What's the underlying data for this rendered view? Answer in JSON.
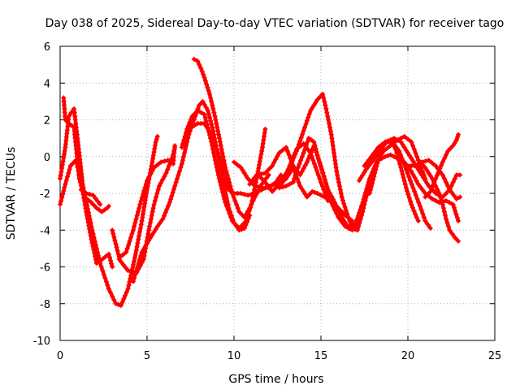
{
  "chart_data": {
    "type": "scatter",
    "title": "Day 038 of 2025, Sidereal Day-to-day VTEC variation (SDTVAR) for receiver tago",
    "xlabel": "GPS time / hours",
    "ylabel": "SDTVAR / TECUs",
    "xlim": [
      0,
      25
    ],
    "ylim": [
      -10,
      6
    ],
    "xticks": [
      0,
      5,
      10,
      15,
      20,
      25
    ],
    "yticks": [
      -10,
      -8,
      -6,
      -4,
      -2,
      0,
      2,
      4,
      6
    ],
    "grid": true,
    "marker": "+",
    "color": "#ff0000",
    "series": [
      {
        "name": "track-1",
        "points": [
          [
            0.0,
            -1.2
          ],
          [
            0.3,
            0.5
          ],
          [
            0.5,
            2.2
          ],
          [
            0.8,
            2.6
          ],
          [
            1.0,
            1.0
          ],
          [
            1.3,
            -1.5
          ],
          [
            1.8,
            -3.8
          ],
          [
            2.3,
            -5.8
          ],
          [
            2.8,
            -7.2
          ],
          [
            3.2,
            -8.0
          ],
          [
            3.5,
            -8.1
          ],
          [
            3.9,
            -7.2
          ],
          [
            4.3,
            -5.5
          ],
          [
            4.7,
            -3.5
          ],
          [
            5.0,
            -1.8
          ],
          [
            5.3,
            -0.3
          ],
          [
            5.5,
            0.8
          ],
          [
            5.6,
            1.1
          ]
        ]
      },
      {
        "name": "track-2",
        "points": [
          [
            0.0,
            -2.6
          ],
          [
            0.3,
            -1.5
          ],
          [
            0.6,
            -0.5
          ],
          [
            0.9,
            -0.2
          ],
          [
            1.2,
            -1.3
          ],
          [
            1.5,
            -3.0
          ],
          [
            1.8,
            -4.5
          ],
          [
            2.1,
            -5.8
          ],
          [
            2.4,
            -5.6
          ],
          [
            2.8,
            -5.3
          ],
          [
            3.0,
            -6.0
          ]
        ]
      },
      {
        "name": "track-3",
        "points": [
          [
            0.2,
            3.2
          ],
          [
            0.3,
            2.0
          ],
          [
            0.5,
            1.8
          ],
          [
            0.8,
            1.6
          ],
          [
            1.1,
            -1.2
          ],
          [
            1.4,
            -2.2
          ],
          [
            1.8,
            -2.5
          ],
          [
            2.1,
            -2.8
          ],
          [
            2.4,
            -3.0
          ],
          [
            2.7,
            -2.8
          ],
          [
            2.8,
            -2.7
          ]
        ]
      },
      {
        "name": "track-4",
        "points": [
          [
            1.2,
            -1.8
          ],
          [
            1.5,
            -2.0
          ],
          [
            1.9,
            -2.1
          ],
          [
            2.3,
            -2.6
          ]
        ]
      },
      {
        "name": "track-5",
        "points": [
          [
            3.0,
            -4.0
          ],
          [
            3.4,
            -5.5
          ],
          [
            3.8,
            -5.2
          ],
          [
            4.2,
            -4.0
          ],
          [
            4.6,
            -2.6
          ],
          [
            5.0,
            -1.3
          ],
          [
            5.4,
            -0.6
          ],
          [
            5.8,
            -0.3
          ],
          [
            6.2,
            -0.2
          ],
          [
            6.5,
            -0.4
          ],
          [
            6.6,
            0.6
          ]
        ]
      },
      {
        "name": "track-6",
        "points": [
          [
            3.4,
            -5.6
          ],
          [
            3.9,
            -6.2
          ],
          [
            4.4,
            -6.3
          ],
          [
            4.8,
            -5.6
          ],
          [
            5.1,
            -4.0
          ],
          [
            5.4,
            -2.6
          ],
          [
            5.7,
            -1.6
          ],
          [
            6.1,
            -0.9
          ],
          [
            6.5,
            0.1
          ],
          [
            6.6,
            0.5
          ]
        ]
      },
      {
        "name": "track-7",
        "points": [
          [
            4.2,
            -6.8
          ],
          [
            4.7,
            -5.2
          ],
          [
            5.2,
            -4.4
          ],
          [
            5.6,
            -3.8
          ],
          [
            5.9,
            -3.4
          ],
          [
            6.3,
            -2.5
          ],
          [
            6.6,
            -1.6
          ],
          [
            7.0,
            -0.4
          ],
          [
            7.4,
            1.2
          ],
          [
            7.7,
            2.0
          ],
          [
            8.0,
            2.8
          ],
          [
            8.2,
            3.0
          ],
          [
            8.5,
            2.5
          ],
          [
            8.8,
            1.4
          ],
          [
            9.1,
            0.0
          ],
          [
            9.4,
            -1.5
          ],
          [
            9.7,
            -2.8
          ],
          [
            10.0,
            -3.6
          ],
          [
            10.3,
            -4.0
          ],
          [
            10.6,
            -3.9
          ],
          [
            10.9,
            -3.2
          ]
        ]
      },
      {
        "name": "track-8",
        "points": [
          [
            7.0,
            0.5
          ],
          [
            7.3,
            1.5
          ],
          [
            7.6,
            2.2
          ],
          [
            7.9,
            2.5
          ],
          [
            8.3,
            2.3
          ],
          [
            8.7,
            0.8
          ],
          [
            9.1,
            -1.0
          ],
          [
            9.5,
            -2.5
          ],
          [
            9.9,
            -3.5
          ],
          [
            10.3,
            -3.9
          ],
          [
            10.7,
            -3.5
          ],
          [
            11.0,
            -2.6
          ],
          [
            11.3,
            -1.2
          ],
          [
            11.6,
            0.3
          ],
          [
            11.8,
            1.5
          ]
        ]
      },
      {
        "name": "track-9",
        "points": [
          [
            7.7,
            5.3
          ],
          [
            7.9,
            5.2
          ],
          [
            8.1,
            4.8
          ],
          [
            8.3,
            4.3
          ],
          [
            8.6,
            3.4
          ],
          [
            8.9,
            2.2
          ],
          [
            9.2,
            0.8
          ],
          [
            9.5,
            -0.6
          ],
          [
            9.9,
            -2.0
          ],
          [
            10.3,
            -3.0
          ],
          [
            10.6,
            -3.3
          ],
          [
            10.9,
            -2.8
          ],
          [
            11.2,
            -2.2
          ],
          [
            11.6,
            -1.5
          ],
          [
            12.0,
            -1.0
          ]
        ]
      },
      {
        "name": "track-10",
        "points": [
          [
            7.4,
            1.5
          ],
          [
            7.9,
            1.8
          ],
          [
            8.3,
            1.8
          ],
          [
            8.7,
            1.2
          ],
          [
            9.1,
            0.2
          ],
          [
            9.4,
            -1.0
          ],
          [
            9.7,
            -1.8
          ],
          [
            10.0,
            -2.0
          ],
          [
            10.4,
            -2.0
          ],
          [
            10.8,
            -2.1
          ],
          [
            11.2,
            -2.0
          ],
          [
            11.6,
            -1.8
          ],
          [
            12.0,
            -1.6
          ],
          [
            12.4,
            -1.5
          ],
          [
            12.8,
            -1.6
          ]
        ]
      },
      {
        "name": "track-11",
        "points": [
          [
            10.0,
            -0.3
          ],
          [
            10.4,
            -0.6
          ],
          [
            10.8,
            -1.2
          ],
          [
            11.2,
            -1.6
          ],
          [
            11.6,
            -1.7
          ],
          [
            12.0,
            -1.7
          ],
          [
            12.4,
            -1.4
          ],
          [
            12.7,
            -1.0
          ]
        ]
      },
      {
        "name": "track-12",
        "points": [
          [
            10.9,
            -1.5
          ],
          [
            11.3,
            -1.0
          ],
          [
            11.8,
            -0.9
          ],
          [
            12.2,
            -0.5
          ],
          [
            12.6,
            0.2
          ],
          [
            13.0,
            0.5
          ],
          [
            13.4,
            -0.5
          ],
          [
            13.8,
            -1.0
          ],
          [
            14.2,
            -0.3
          ],
          [
            14.6,
            0.6
          ],
          [
            15.0,
            -0.5
          ],
          [
            15.4,
            -1.8
          ],
          [
            15.8,
            -2.5
          ],
          [
            16.2,
            -3.3
          ],
          [
            16.6,
            -3.9
          ],
          [
            17.0,
            -3.6
          ],
          [
            17.4,
            -2.5
          ],
          [
            17.8,
            -1.2
          ],
          [
            18.2,
            -0.3
          ],
          [
            18.6,
            0.3
          ],
          [
            19.0,
            0.6
          ],
          [
            19.4,
            0.9
          ],
          [
            19.8,
            1.1
          ],
          [
            20.2,
            0.8
          ],
          [
            20.6,
            -0.2
          ],
          [
            21.0,
            -1.2
          ]
        ]
      },
      {
        "name": "track-13",
        "points": [
          [
            11.4,
            -1.0
          ],
          [
            11.8,
            -1.4
          ],
          [
            12.2,
            -1.9
          ],
          [
            12.6,
            -1.5
          ],
          [
            13.0,
            -1.2
          ],
          [
            13.4,
            -0.6
          ],
          [
            13.8,
            -1.6
          ],
          [
            14.2,
            -2.2
          ],
          [
            14.5,
            -1.9
          ],
          [
            14.8,
            -2.0
          ],
          [
            15.2,
            -2.2
          ],
          [
            15.6,
            -2.4
          ],
          [
            16.0,
            -2.8
          ],
          [
            16.4,
            -3.2
          ],
          [
            16.8,
            -3.5
          ]
        ]
      },
      {
        "name": "track-14",
        "points": [
          [
            12.6,
            -1.7
          ],
          [
            13.0,
            -1.6
          ],
          [
            13.4,
            -1.4
          ],
          [
            13.6,
            -0.8
          ],
          [
            14.0,
            0.2
          ],
          [
            14.3,
            1.0
          ],
          [
            14.6,
            0.8
          ],
          [
            14.9,
            -0.3
          ],
          [
            15.3,
            -1.5
          ],
          [
            15.6,
            -2.5
          ],
          [
            16.0,
            -3.3
          ],
          [
            16.4,
            -3.8
          ],
          [
            16.8,
            -4.0
          ],
          [
            17.1,
            -3.6
          ],
          [
            17.4,
            -2.7
          ],
          [
            17.7,
            -1.9
          ],
          [
            18.0,
            -1.1
          ]
        ]
      },
      {
        "name": "track-15",
        "points": [
          [
            12.4,
            -1.7
          ],
          [
            12.8,
            -1.2
          ],
          [
            13.2,
            -0.6
          ],
          [
            13.6,
            0.3
          ],
          [
            14.0,
            1.4
          ],
          [
            14.4,
            2.5
          ],
          [
            14.8,
            3.1
          ],
          [
            15.1,
            3.4
          ],
          [
            15.3,
            2.6
          ],
          [
            15.6,
            1.2
          ],
          [
            15.9,
            -0.8
          ],
          [
            16.2,
            -2.2
          ],
          [
            16.5,
            -3.1
          ],
          [
            16.8,
            -3.9
          ],
          [
            17.1,
            -4.0
          ],
          [
            17.4,
            -3.0
          ],
          [
            17.7,
            -1.8
          ],
          [
            18.0,
            -0.8
          ],
          [
            18.3,
            -0.2
          ],
          [
            18.7,
            0.0
          ],
          [
            19.0,
            0.1
          ],
          [
            19.4,
            -0.1
          ],
          [
            19.8,
            -0.3
          ],
          [
            20.2,
            -0.8
          ],
          [
            20.6,
            -1.5
          ],
          [
            21.0,
            -2.0
          ],
          [
            21.4,
            -2.3
          ],
          [
            21.8,
            -2.5
          ],
          [
            22.2,
            -2.4
          ],
          [
            22.6,
            -2.6
          ],
          [
            22.9,
            -3.5
          ]
        ]
      },
      {
        "name": "track-16",
        "points": [
          [
            12.8,
            -1.4
          ],
          [
            13.2,
            -0.5
          ],
          [
            13.6,
            0.4
          ],
          [
            14.0,
            0.7
          ],
          [
            14.4,
            0.2
          ],
          [
            14.7,
            -0.6
          ],
          [
            15.0,
            -1.4
          ],
          [
            15.4,
            -2.4
          ]
        ]
      },
      {
        "name": "track-17",
        "points": [
          [
            17.2,
            -1.3
          ],
          [
            17.6,
            -0.7
          ],
          [
            18.0,
            -0.2
          ],
          [
            18.4,
            0.4
          ],
          [
            18.8,
            0.8
          ],
          [
            19.2,
            1.0
          ],
          [
            19.6,
            0.8
          ],
          [
            20.0,
            0.2
          ],
          [
            20.4,
            -0.4
          ],
          [
            20.8,
            -1.0
          ],
          [
            21.2,
            -1.6
          ],
          [
            21.6,
            -2.0
          ],
          [
            22.0,
            -2.2
          ],
          [
            22.4,
            -1.8
          ],
          [
            22.8,
            -1.0
          ],
          [
            23.0,
            -1.0
          ]
        ]
      },
      {
        "name": "track-18",
        "points": [
          [
            17.5,
            -0.5
          ],
          [
            17.9,
            0.0
          ],
          [
            18.3,
            0.5
          ],
          [
            18.7,
            0.8
          ],
          [
            19.1,
            0.8
          ],
          [
            19.5,
            0.3
          ],
          [
            19.9,
            -0.7
          ],
          [
            20.3,
            -1.7
          ],
          [
            20.7,
            -2.7
          ],
          [
            21.0,
            -3.5
          ],
          [
            21.3,
            -3.9
          ]
        ]
      },
      {
        "name": "track-19",
        "points": [
          [
            17.8,
            -2.0
          ],
          [
            18.1,
            -0.9
          ],
          [
            18.4,
            0.2
          ],
          [
            18.7,
            0.8
          ],
          [
            19.0,
            0.9
          ],
          [
            19.3,
            0.4
          ],
          [
            19.6,
            -0.6
          ],
          [
            19.9,
            -1.7
          ],
          [
            20.2,
            -2.6
          ],
          [
            20.5,
            -3.3
          ],
          [
            20.6,
            -3.5
          ]
        ]
      },
      {
        "name": "track-20",
        "points": [
          [
            20.0,
            -0.5
          ],
          [
            20.4,
            -0.5
          ],
          [
            20.8,
            -0.3
          ],
          [
            21.2,
            -0.2
          ],
          [
            21.6,
            -0.5
          ],
          [
            22.0,
            -1.0
          ],
          [
            22.4,
            -1.8
          ],
          [
            22.8,
            -2.3
          ],
          [
            23.0,
            -2.2
          ]
        ]
      },
      {
        "name": "track-21",
        "points": [
          [
            21.0,
            -2.2
          ],
          [
            21.3,
            -1.9
          ],
          [
            21.6,
            -1.2
          ],
          [
            22.0,
            -0.3
          ],
          [
            22.3,
            0.3
          ],
          [
            22.6,
            0.6
          ],
          [
            22.8,
            0.9
          ],
          [
            22.9,
            1.2
          ]
        ]
      },
      {
        "name": "track-22",
        "points": [
          [
            20.6,
            -0.2
          ],
          [
            21.0,
            -0.6
          ],
          [
            21.4,
            -1.2
          ],
          [
            21.8,
            -2.0
          ],
          [
            22.0,
            -2.6
          ],
          [
            22.2,
            -3.4
          ],
          [
            22.4,
            -4.0
          ],
          [
            22.7,
            -4.4
          ],
          [
            22.9,
            -4.6
          ]
        ]
      }
    ]
  }
}
